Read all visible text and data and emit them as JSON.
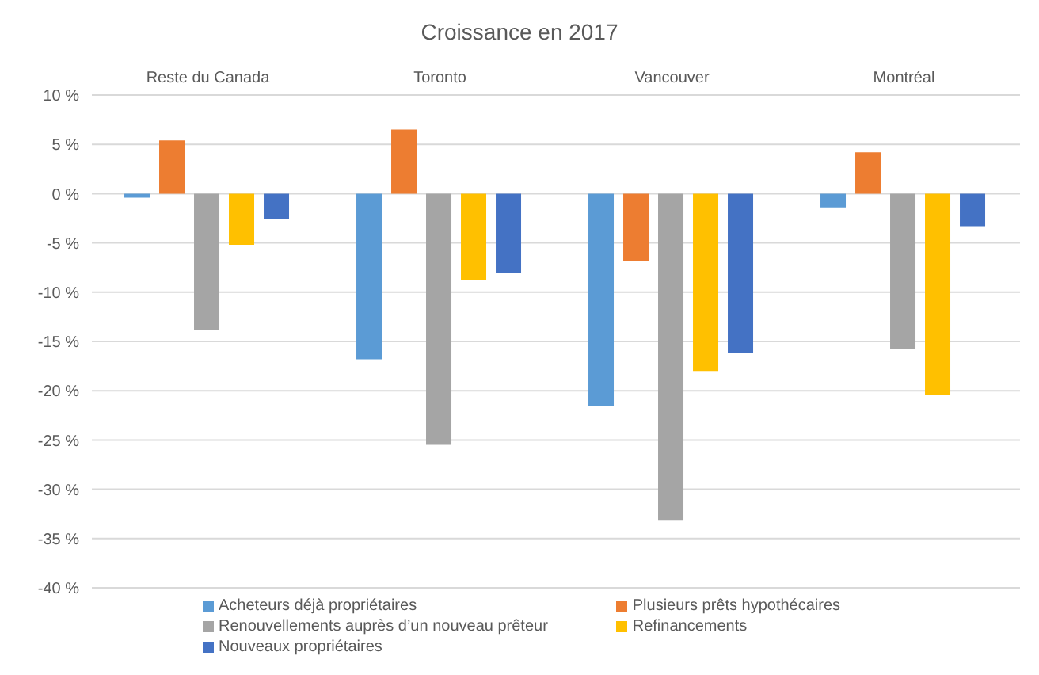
{
  "chart_data": {
    "type": "bar",
    "title": "Croissance en 2017",
    "categories": [
      "Reste du Canada",
      "Toronto",
      "Vancouver",
      "Montréal"
    ],
    "series": [
      {
        "name": "Acheteurs déjà propriétaires",
        "color": "#5b9bd5",
        "values": [
          -0.4,
          -16.8,
          -21.6,
          -1.4
        ]
      },
      {
        "name": "Plusieurs prêts hypothécaires",
        "color": "#ed7d31",
        "values": [
          5.4,
          6.5,
          -6.8,
          4.2
        ]
      },
      {
        "name": "Renouvellements auprès d’un nouveau prêteur",
        "color": "#a5a5a5",
        "values": [
          -13.8,
          -25.5,
          -33.1,
          -15.8
        ]
      },
      {
        "name": "Refinancements",
        "color": "#ffc000",
        "values": [
          -5.2,
          -8.8,
          -18.0,
          -20.4
        ]
      },
      {
        "name": "Nouveaux propriétaires",
        "color": "#4472c4",
        "values": [
          -2.6,
          -8.0,
          -16.2,
          -3.3
        ]
      }
    ],
    "ylim": [
      -40,
      10
    ],
    "yticks": [
      {
        "value": 10,
        "label": "10 %"
      },
      {
        "value": 5,
        "label": "5 %"
      },
      {
        "value": 0,
        "label": "0 %"
      },
      {
        "value": -5,
        "label": "-5 %"
      },
      {
        "value": -10,
        "label": "-10 %"
      },
      {
        "value": -15,
        "label": "-15 %"
      },
      {
        "value": -20,
        "label": "-20 %"
      },
      {
        "value": -25,
        "label": "-25 %"
      },
      {
        "value": -30,
        "label": "-30 %"
      },
      {
        "value": -35,
        "label": "-35 %"
      },
      {
        "value": -40,
        "label": "-40 %"
      }
    ],
    "grid": "y",
    "legend": "bottom"
  }
}
